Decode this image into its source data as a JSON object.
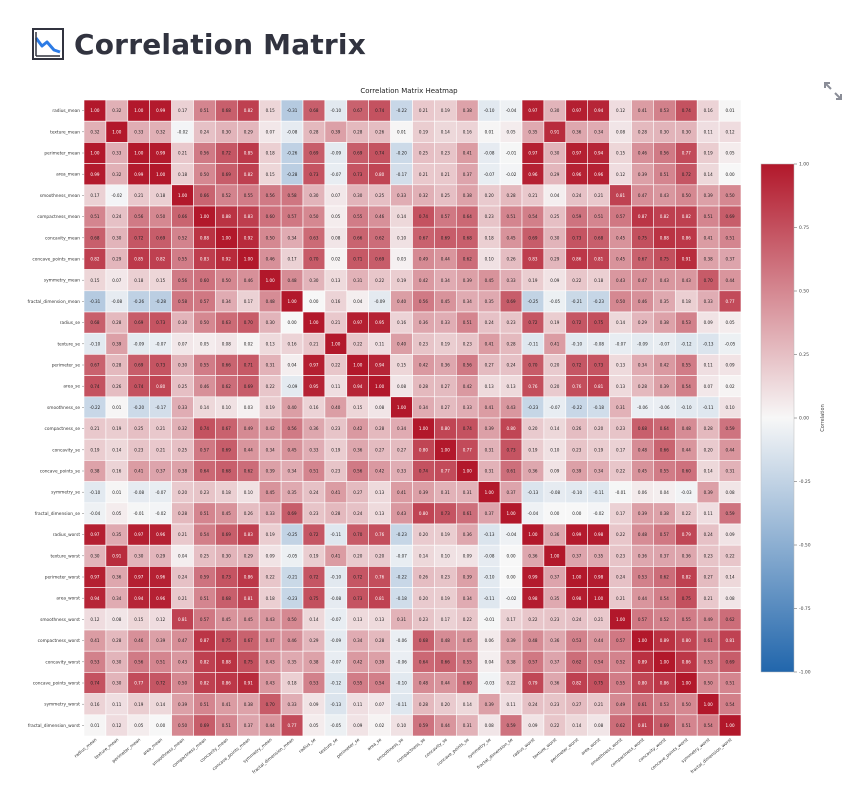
{
  "page": {
    "title": "Correlation Matrix",
    "logo_icon": "chart-line-icon",
    "expand_icon": "fullscreen-expand-icon"
  },
  "colors": {
    "positive": "#b2182b",
    "neutral": "#f7f7f7",
    "negative": "#2166ac"
  },
  "chart_data": {
    "type": "heatmap",
    "title": "Correlation Matrix Heatmap",
    "colorbar_label": "Correlation",
    "vmin": -1,
    "vmax": 1,
    "colorbar_ticks": [
      "1.00",
      "0.75",
      "0.50",
      "0.25",
      "0.00",
      "-0.25",
      "-0.50",
      "-0.75",
      "-1.00"
    ],
    "labels": [
      "radius_mean",
      "texture_mean",
      "perimeter_mean",
      "area_mean",
      "smoothness_mean",
      "compactness_mean",
      "concavity_mean",
      "concave_points_mean",
      "symmetry_mean",
      "fractal_dimension_mean",
      "radius_se",
      "texture_se",
      "perimeter_se",
      "area_se",
      "smoothness_se",
      "compactness_se",
      "concavity_se",
      "concave_points_se",
      "symmetry_se",
      "fractal_dimension_se",
      "radius_worst",
      "texture_worst",
      "perimeter_worst",
      "area_worst",
      "smoothness_worst",
      "compactness_worst",
      "concavity_worst",
      "concave_points_worst",
      "symmetry_worst",
      "fractal_dimension_worst"
    ],
    "matrix": [
      [
        1.0,
        0.32,
        1.0,
        0.99,
        0.17,
        0.51,
        0.68,
        0.82,
        0.15,
        -0.31,
        0.68,
        -0.1,
        0.67,
        0.74,
        -0.22,
        0.21,
        0.19,
        0.38,
        -0.1,
        -0.04,
        0.97,
        0.3,
        0.97,
        0.94,
        0.12,
        0.41,
        0.53,
        0.74,
        0.16,
        0.01
      ],
      [
        0.32,
        1.0,
        0.33,
        0.32,
        -0.02,
        0.24,
        0.3,
        0.29,
        0.07,
        -0.08,
        0.28,
        0.39,
        0.28,
        0.26,
        0.01,
        0.19,
        0.14,
        0.16,
        0.01,
        0.05,
        0.35,
        0.91,
        0.36,
        0.34,
        0.08,
        0.28,
        0.3,
        0.3,
        0.11,
        0.12
      ],
      [
        1.0,
        0.33,
        1.0,
        0.99,
        0.21,
        0.56,
        0.72,
        0.85,
        0.18,
        -0.26,
        0.69,
        -0.09,
        0.69,
        0.74,
        -0.2,
        0.25,
        0.23,
        0.41,
        -0.08,
        -0.01,
        0.97,
        0.3,
        0.97,
        0.94,
        0.15,
        0.46,
        0.56,
        0.77,
        0.19,
        0.05
      ],
      [
        0.99,
        0.32,
        0.99,
        1.0,
        0.18,
        0.5,
        0.69,
        0.82,
        0.15,
        -0.28,
        0.73,
        -0.07,
        0.73,
        0.8,
        -0.17,
        0.21,
        0.21,
        0.37,
        -0.07,
        -0.02,
        0.96,
        0.29,
        0.96,
        0.96,
        0.12,
        0.39,
        0.51,
        0.72,
        0.14,
        0.0
      ],
      [
        0.17,
        -0.02,
        0.21,
        0.18,
        1.0,
        0.66,
        0.52,
        0.55,
        0.56,
        0.58,
        0.3,
        0.07,
        0.3,
        0.25,
        0.33,
        0.32,
        0.25,
        0.38,
        0.2,
        0.28,
        0.21,
        0.04,
        0.24,
        0.21,
        0.81,
        0.47,
        0.43,
        0.5,
        0.39,
        0.5
      ],
      [
        0.51,
        0.24,
        0.56,
        0.5,
        0.66,
        1.0,
        0.88,
        0.83,
        0.6,
        0.57,
        0.5,
        0.05,
        0.55,
        0.46,
        0.14,
        0.74,
        0.57,
        0.64,
        0.23,
        0.51,
        0.54,
        0.25,
        0.59,
        0.51,
        0.57,
        0.87,
        0.82,
        0.82,
        0.51,
        0.69
      ],
      [
        0.68,
        0.3,
        0.72,
        0.69,
        0.52,
        0.88,
        1.0,
        0.92,
        0.5,
        0.34,
        0.63,
        0.08,
        0.66,
        0.62,
        0.1,
        0.67,
        0.69,
        0.68,
        0.18,
        0.45,
        0.69,
        0.3,
        0.73,
        0.68,
        0.45,
        0.75,
        0.88,
        0.86,
        0.41,
        0.51
      ],
      [
        0.82,
        0.29,
        0.85,
        0.82,
        0.55,
        0.83,
        0.92,
        1.0,
        0.46,
        0.17,
        0.7,
        0.02,
        0.71,
        0.69,
        0.03,
        0.49,
        0.44,
        0.62,
        0.1,
        0.26,
        0.83,
        0.29,
        0.86,
        0.81,
        0.45,
        0.67,
        0.75,
        0.91,
        0.38,
        0.37
      ],
      [
        0.15,
        0.07,
        0.18,
        0.15,
        0.56,
        0.6,
        0.5,
        0.46,
        1.0,
        0.48,
        0.3,
        0.13,
        0.31,
        0.22,
        0.19,
        0.42,
        0.34,
        0.39,
        0.45,
        0.33,
        0.19,
        0.09,
        0.22,
        0.18,
        0.43,
        0.47,
        0.43,
        0.43,
        0.7,
        0.44
      ],
      [
        -0.31,
        -0.08,
        -0.26,
        -0.28,
        0.58,
        0.57,
        0.34,
        0.17,
        0.48,
        1.0,
        0.0,
        0.16,
        0.04,
        -0.09,
        0.4,
        0.56,
        0.45,
        0.34,
        0.35,
        0.69,
        -0.25,
        -0.05,
        -0.21,
        -0.23,
        0.5,
        0.46,
        0.35,
        0.18,
        0.33,
        0.77
      ],
      [
        0.68,
        0.28,
        0.69,
        0.73,
        0.3,
        0.5,
        0.63,
        0.7,
        0.3,
        0.0,
        1.0,
        0.21,
        0.97,
        0.95,
        0.16,
        0.36,
        0.33,
        0.51,
        0.24,
        0.23,
        0.72,
        0.19,
        0.72,
        0.75,
        0.14,
        0.29,
        0.38,
        0.53,
        0.09,
        0.05
      ],
      [
        -0.1,
        0.39,
        -0.09,
        -0.07,
        0.07,
        0.05,
        0.08,
        0.02,
        0.13,
        0.16,
        0.21,
        1.0,
        0.22,
        0.11,
        0.4,
        0.23,
        0.19,
        0.23,
        0.41,
        0.28,
        -0.11,
        0.41,
        -0.1,
        -0.08,
        -0.07,
        -0.09,
        -0.07,
        -0.12,
        -0.13,
        -0.05
      ],
      [
        0.67,
        0.28,
        0.69,
        0.73,
        0.3,
        0.55,
        0.66,
        0.71,
        0.31,
        0.04,
        0.97,
        0.22,
        1.0,
        0.94,
        0.15,
        0.42,
        0.36,
        0.56,
        0.27,
        0.24,
        0.7,
        0.2,
        0.72,
        0.73,
        0.13,
        0.34,
        0.42,
        0.55,
        0.11,
        0.09
      ],
      [
        0.74,
        0.26,
        0.74,
        0.8,
        0.25,
        0.46,
        0.62,
        0.69,
        0.22,
        -0.09,
        0.95,
        0.11,
        0.94,
        1.0,
        0.08,
        0.28,
        0.27,
        0.42,
        0.13,
        0.13,
        0.76,
        0.2,
        0.76,
        0.81,
        0.13,
        0.28,
        0.39,
        0.54,
        0.07,
        0.02
      ],
      [
        -0.22,
        0.01,
        -0.2,
        -0.17,
        0.33,
        0.14,
        0.1,
        0.03,
        0.19,
        0.4,
        0.16,
        0.4,
        0.15,
        0.08,
        1.0,
        0.34,
        0.27,
        0.33,
        0.41,
        0.43,
        -0.23,
        -0.07,
        -0.22,
        -0.18,
        0.31,
        -0.06,
        -0.06,
        -0.1,
        -0.11,
        0.1
      ],
      [
        0.21,
        0.19,
        0.25,
        0.21,
        0.32,
        0.74,
        0.67,
        0.49,
        0.42,
        0.56,
        0.36,
        0.23,
        0.42,
        0.28,
        0.34,
        1.0,
        0.8,
        0.74,
        0.39,
        0.8,
        0.2,
        0.14,
        0.26,
        0.2,
        0.23,
        0.68,
        0.64,
        0.48,
        0.28,
        0.59
      ],
      [
        0.19,
        0.14,
        0.23,
        0.21,
        0.25,
        0.57,
        0.69,
        0.44,
        0.34,
        0.45,
        0.33,
        0.19,
        0.36,
        0.27,
        0.27,
        0.8,
        1.0,
        0.77,
        0.31,
        0.73,
        0.19,
        0.1,
        0.23,
        0.19,
        0.17,
        0.48,
        0.66,
        0.44,
        0.2,
        0.44
      ],
      [
        0.38,
        0.16,
        0.41,
        0.37,
        0.38,
        0.64,
        0.68,
        0.62,
        0.39,
        0.34,
        0.51,
        0.23,
        0.56,
        0.42,
        0.33,
        0.74,
        0.77,
        1.0,
        0.31,
        0.61,
        0.36,
        0.09,
        0.39,
        0.34,
        0.22,
        0.45,
        0.55,
        0.6,
        0.14,
        0.31
      ],
      [
        -0.1,
        0.01,
        -0.08,
        -0.07,
        0.2,
        0.23,
        0.18,
        0.1,
        0.45,
        0.35,
        0.24,
        0.41,
        0.27,
        0.13,
        0.41,
        0.39,
        0.31,
        0.31,
        1.0,
        0.37,
        -0.13,
        -0.08,
        -0.1,
        -0.11,
        -0.01,
        0.06,
        0.04,
        -0.03,
        0.39,
        0.08
      ],
      [
        -0.04,
        0.05,
        -0.01,
        -0.02,
        0.28,
        0.51,
        0.45,
        0.26,
        0.33,
        0.69,
        0.23,
        0.28,
        0.24,
        0.13,
        0.43,
        0.8,
        0.73,
        0.61,
        0.37,
        1.0,
        -0.04,
        -0.0,
        -0.0,
        -0.02,
        0.17,
        0.39,
        0.38,
        0.22,
        0.11,
        0.59
      ],
      [
        0.97,
        0.35,
        0.97,
        0.96,
        0.21,
        0.54,
        0.69,
        0.83,
        0.19,
        -0.25,
        0.72,
        -0.11,
        0.7,
        0.76,
        -0.23,
        0.2,
        0.19,
        0.36,
        -0.13,
        -0.04,
        1.0,
        0.36,
        0.99,
        0.98,
        0.22,
        0.48,
        0.57,
        0.79,
        0.24,
        0.09
      ],
      [
        0.3,
        0.91,
        0.3,
        0.29,
        0.04,
        0.25,
        0.3,
        0.29,
        0.09,
        -0.05,
        0.19,
        0.41,
        0.2,
        0.2,
        -0.07,
        0.14,
        0.1,
        0.09,
        -0.08,
        -0.0,
        0.36,
        1.0,
        0.37,
        0.35,
        0.23,
        0.36,
        0.37,
        0.36,
        0.23,
        0.22
      ],
      [
        0.97,
        0.36,
        0.97,
        0.96,
        0.24,
        0.59,
        0.73,
        0.86,
        0.22,
        -0.21,
        0.72,
        -0.1,
        0.72,
        0.76,
        -0.22,
        0.26,
        0.23,
        0.39,
        -0.1,
        -0.0,
        0.99,
        0.37,
        1.0,
        0.98,
        0.24,
        0.53,
        0.62,
        0.82,
        0.27,
        0.14
      ],
      [
        0.94,
        0.34,
        0.94,
        0.96,
        0.21,
        0.51,
        0.68,
        0.81,
        0.18,
        -0.23,
        0.75,
        -0.08,
        0.73,
        0.81,
        -0.18,
        0.2,
        0.19,
        0.34,
        -0.11,
        -0.02,
        0.98,
        0.35,
        0.98,
        1.0,
        0.21,
        0.44,
        0.54,
        0.75,
        0.21,
        0.08
      ],
      [
        0.12,
        0.08,
        0.15,
        0.12,
        0.81,
        0.57,
        0.45,
        0.45,
        0.43,
        0.5,
        0.14,
        -0.07,
        0.13,
        0.13,
        0.31,
        0.23,
        0.17,
        0.22,
        -0.01,
        0.17,
        0.22,
        0.23,
        0.24,
        0.21,
        1.0,
        0.57,
        0.52,
        0.55,
        0.49,
        0.62
      ],
      [
        0.41,
        0.28,
        0.46,
        0.39,
        0.47,
        0.87,
        0.75,
        0.67,
        0.47,
        0.46,
        0.29,
        -0.09,
        0.34,
        0.28,
        -0.06,
        0.68,
        0.48,
        0.45,
        0.06,
        0.39,
        0.48,
        0.36,
        0.53,
        0.44,
        0.57,
        1.0,
        0.89,
        0.8,
        0.61,
        0.81
      ],
      [
        0.53,
        0.3,
        0.56,
        0.51,
        0.43,
        0.82,
        0.88,
        0.75,
        0.43,
        0.35,
        0.38,
        -0.07,
        0.42,
        0.39,
        -0.06,
        0.64,
        0.66,
        0.55,
        0.04,
        0.38,
        0.57,
        0.37,
        0.62,
        0.54,
        0.52,
        0.89,
        1.0,
        0.86,
        0.53,
        0.69
      ],
      [
        0.74,
        0.3,
        0.77,
        0.72,
        0.5,
        0.82,
        0.86,
        0.91,
        0.43,
        0.18,
        0.53,
        -0.12,
        0.55,
        0.54,
        -0.1,
        0.48,
        0.44,
        0.6,
        -0.03,
        0.22,
        0.79,
        0.36,
        0.82,
        0.75,
        0.55,
        0.8,
        0.86,
        1.0,
        0.5,
        0.51
      ],
      [
        0.16,
        0.11,
        0.19,
        0.14,
        0.39,
        0.51,
        0.41,
        0.38,
        0.7,
        0.33,
        0.09,
        -0.13,
        0.11,
        0.07,
        -0.11,
        0.28,
        0.2,
        0.14,
        0.39,
        0.11,
        0.24,
        0.23,
        0.27,
        0.21,
        0.49,
        0.61,
        0.53,
        0.5,
        1.0,
        0.54
      ],
      [
        0.01,
        0.12,
        0.05,
        0.0,
        0.5,
        0.69,
        0.51,
        0.37,
        0.44,
        0.77,
        0.05,
        -0.05,
        0.09,
        0.02,
        0.1,
        0.59,
        0.44,
        0.31,
        0.08,
        0.59,
        0.09,
        0.22,
        0.14,
        0.08,
        0.62,
        0.81,
        0.69,
        0.51,
        0.54,
        1.0
      ]
    ]
  }
}
